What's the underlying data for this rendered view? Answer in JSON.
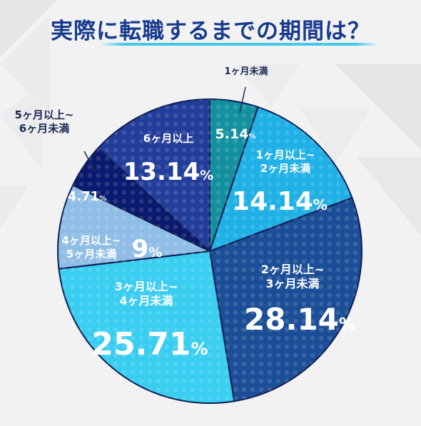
{
  "title": "実際に転職するまでの期間は？",
  "chart_data": {
    "type": "pie",
    "title": "実際に転職するまでの期間は？",
    "start_angle_deg": 0,
    "direction": "clockwise",
    "slices": [
      {
        "label": "1ヶ月未満",
        "value": 5.14,
        "display": "5.14%",
        "color": "#13909e"
      },
      {
        "label": "1ヶ月以上~ 2ヶ月未満",
        "value": 14.14,
        "display": "14.14%",
        "color": "#1fb0e6"
      },
      {
        "label": "2ヶ月以上~ 3ヶ月未満",
        "value": 28.14,
        "display": "28.14%",
        "color": "#1c4e97"
      },
      {
        "label": "3ヶ月以上~ 4ヶ月未満",
        "value": 25.71,
        "display": "25.71%",
        "color": "#39cdf0"
      },
      {
        "label": "4ヶ月以上~ 5ヶ月未満",
        "value": 9,
        "display": "9%",
        "color": "#8fbde6"
      },
      {
        "label": "5ヶ月以上~ 6ヶ月未満",
        "value": 4.71,
        "display": "4.71%",
        "color": "#0a1a6e"
      },
      {
        "label": "6ヶ月以上",
        "value": 13.14,
        "display": "13.14%",
        "color": "#233d9a"
      }
    ]
  }
}
